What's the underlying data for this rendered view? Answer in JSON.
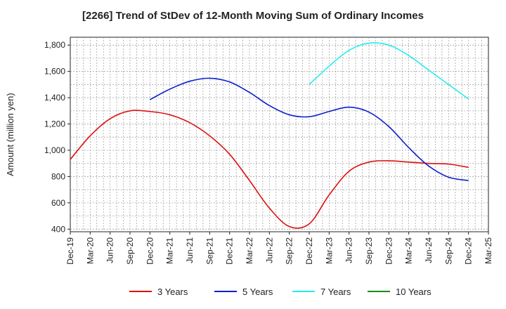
{
  "chart_data": {
    "type": "line",
    "title": "[2266]  Trend of StDev of 12-Month Moving Sum of Ordinary Incomes",
    "ylabel": "Amount (million yen)",
    "xlabel": "",
    "ylim": [
      380,
      1860
    ],
    "yticks": [
      400,
      600,
      800,
      1000,
      1200,
      1400,
      1600,
      1800
    ],
    "ytick_labels": [
      "400",
      "600",
      "800",
      "1,000",
      "1,200",
      "1,400",
      "1,600",
      "1,800"
    ],
    "xticks": [
      "Dec-19",
      "Mar-20",
      "Jun-20",
      "Sep-20",
      "Dec-20",
      "Mar-21",
      "Jun-21",
      "Sep-21",
      "Dec-21",
      "Mar-22",
      "Jun-22",
      "Sep-22",
      "Dec-22",
      "Mar-23",
      "Jun-23",
      "Sep-23",
      "Dec-23",
      "Mar-24",
      "Jun-24",
      "Sep-24",
      "Dec-24",
      "Mar-25"
    ],
    "grid": true,
    "legend_position": "bottom",
    "series": [
      {
        "name": "3 Years",
        "color": "#dd1111",
        "points": [
          [
            "Dec-19",
            930
          ],
          [
            "Mar-20",
            1110
          ],
          [
            "Jun-20",
            1240
          ],
          [
            "Sep-20",
            1300
          ],
          [
            "Dec-20",
            1295
          ],
          [
            "Mar-21",
            1270
          ],
          [
            "Jun-21",
            1210
          ],
          [
            "Sep-21",
            1110
          ],
          [
            "Dec-21",
            970
          ],
          [
            "Mar-22",
            770
          ],
          [
            "Jun-22",
            560
          ],
          [
            "Sep-22",
            420
          ],
          [
            "Dec-22",
            440
          ],
          [
            "Mar-23",
            660
          ],
          [
            "Jun-23",
            840
          ],
          [
            "Sep-23",
            910
          ],
          [
            "Dec-23",
            920
          ],
          [
            "Mar-24",
            910
          ],
          [
            "Jun-24",
            900
          ],
          [
            "Sep-24",
            895
          ],
          [
            "Dec-24",
            870
          ]
        ]
      },
      {
        "name": "5 Years",
        "color": "#0a1ecc",
        "points": [
          [
            "Dec-20",
            1385
          ],
          [
            "Mar-21",
            1465
          ],
          [
            "Jun-21",
            1525
          ],
          [
            "Sep-21",
            1548
          ],
          [
            "Dec-21",
            1520
          ],
          [
            "Mar-22",
            1440
          ],
          [
            "Jun-22",
            1340
          ],
          [
            "Sep-22",
            1270
          ],
          [
            "Dec-22",
            1255
          ],
          [
            "Mar-23",
            1295
          ],
          [
            "Jun-23",
            1328
          ],
          [
            "Sep-23",
            1290
          ],
          [
            "Dec-23",
            1180
          ],
          [
            "Mar-24",
            1020
          ],
          [
            "Jun-24",
            880
          ],
          [
            "Sep-24",
            795
          ],
          [
            "Dec-24",
            770
          ]
        ]
      },
      {
        "name": "7 Years",
        "color": "#22eeee",
        "points": [
          [
            "Dec-22",
            1500
          ],
          [
            "Mar-23",
            1640
          ],
          [
            "Jun-23",
            1760
          ],
          [
            "Sep-23",
            1815
          ],
          [
            "Dec-23",
            1800
          ],
          [
            "Mar-24",
            1720
          ],
          [
            "Jun-24",
            1610
          ],
          [
            "Sep-24",
            1500
          ],
          [
            "Dec-24",
            1390
          ]
        ]
      },
      {
        "name": "10 Years",
        "color": "#1a8a1a",
        "points": []
      }
    ]
  }
}
